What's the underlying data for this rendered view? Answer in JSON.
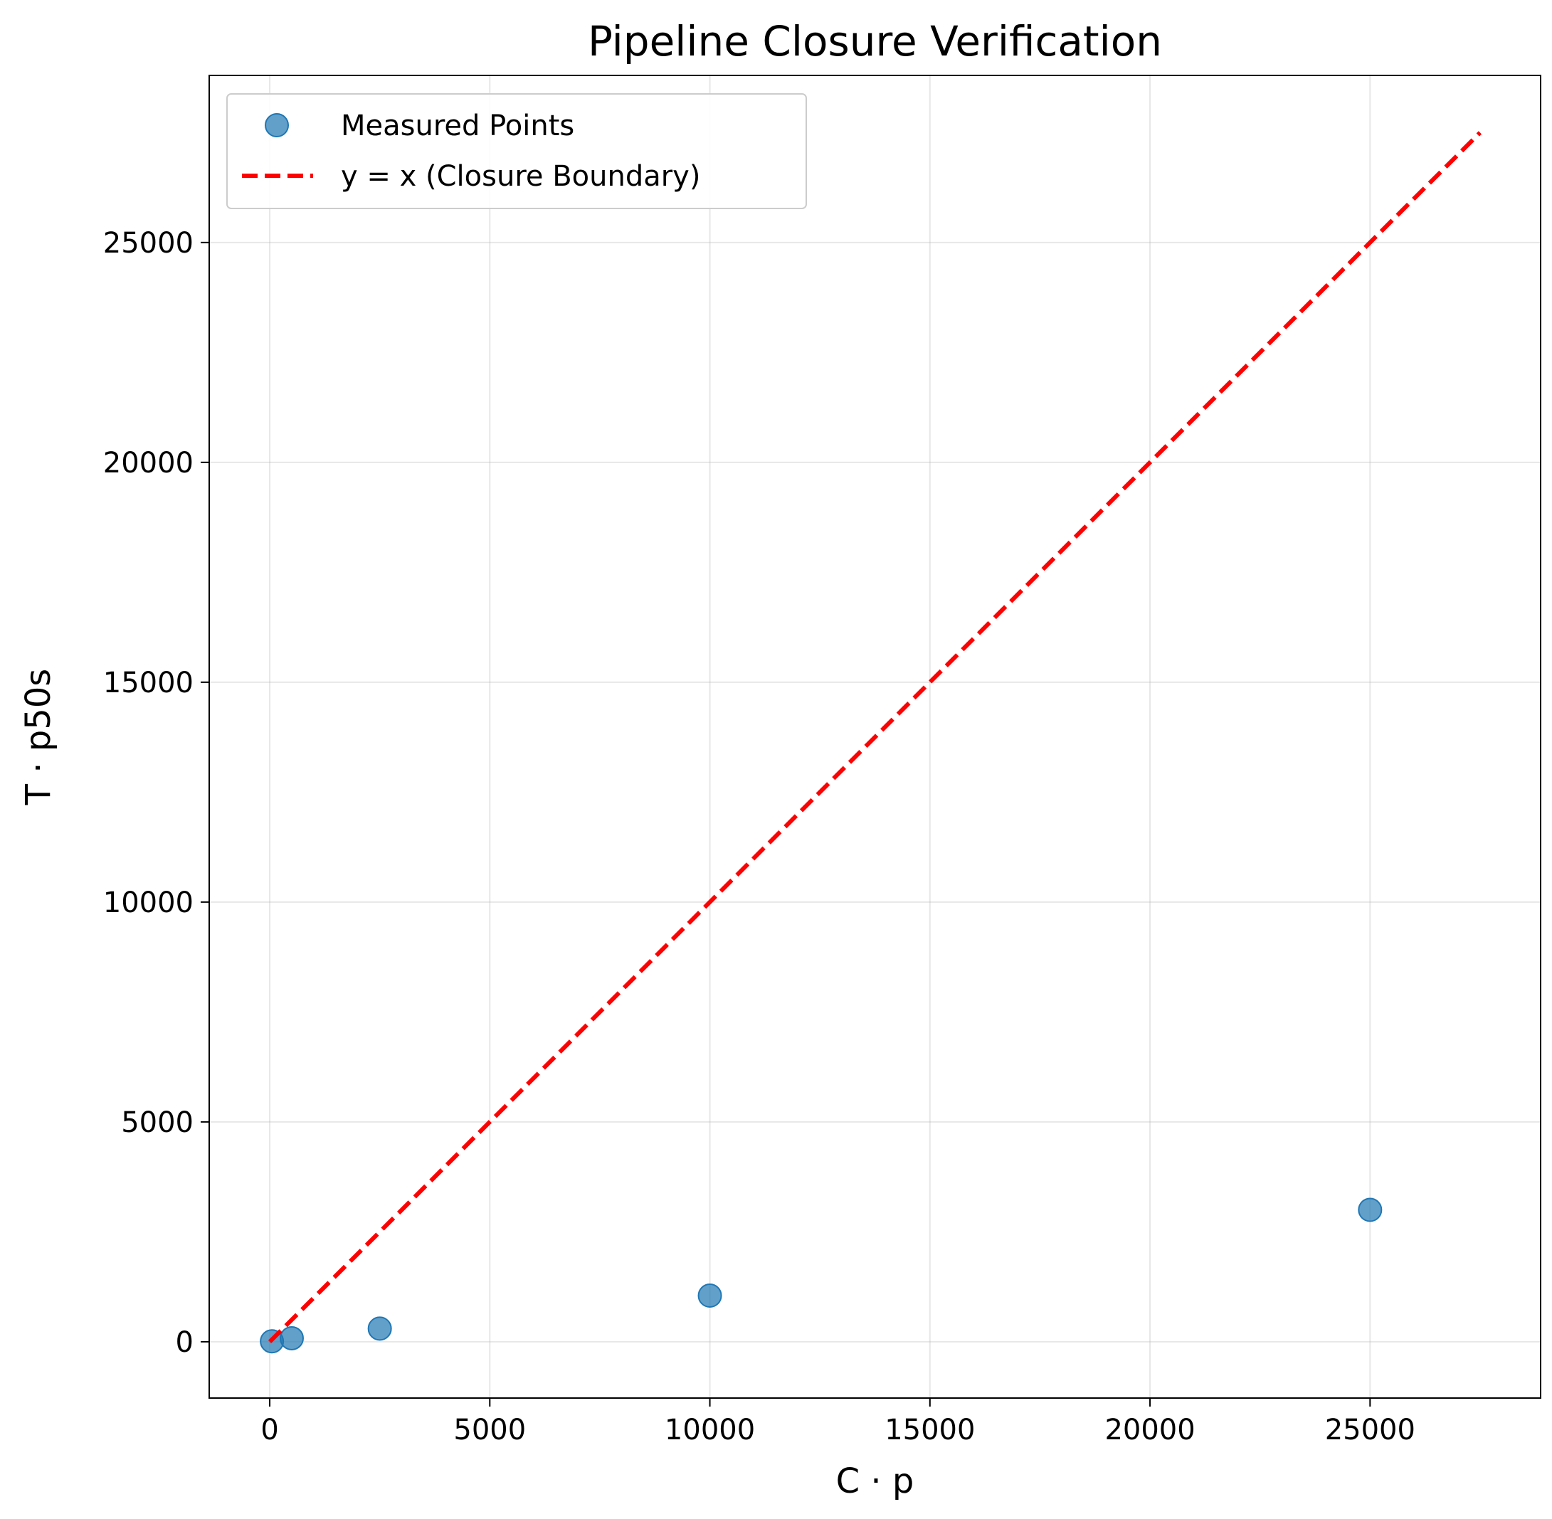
{
  "chart_data": {
    "type": "scatter",
    "title": "Pipeline Closure Verification",
    "xlabel": "C · p",
    "ylabel": "T · p50s",
    "xlim": [
      -1375,
      28875
    ],
    "ylim": [
      -1280,
      28800
    ],
    "xticks": [
      0,
      5000,
      10000,
      15000,
      20000,
      25000
    ],
    "yticks": [
      0,
      5000,
      10000,
      15000,
      20000,
      25000
    ],
    "grid": true,
    "legend_position": "upper-left",
    "series": [
      {
        "name": "Measured Points",
        "kind": "scatter",
        "color": "#1f77b4",
        "x": [
          50,
          500,
          2500,
          10000,
          25000
        ],
        "y": [
          10,
          80,
          300,
          1050,
          3000
        ]
      },
      {
        "name": "y = x (Closure Boundary)",
        "kind": "line",
        "style": "dashed",
        "color": "#ff0000",
        "x": [
          0,
          27500
        ],
        "y": [
          0,
          27500
        ]
      }
    ]
  }
}
